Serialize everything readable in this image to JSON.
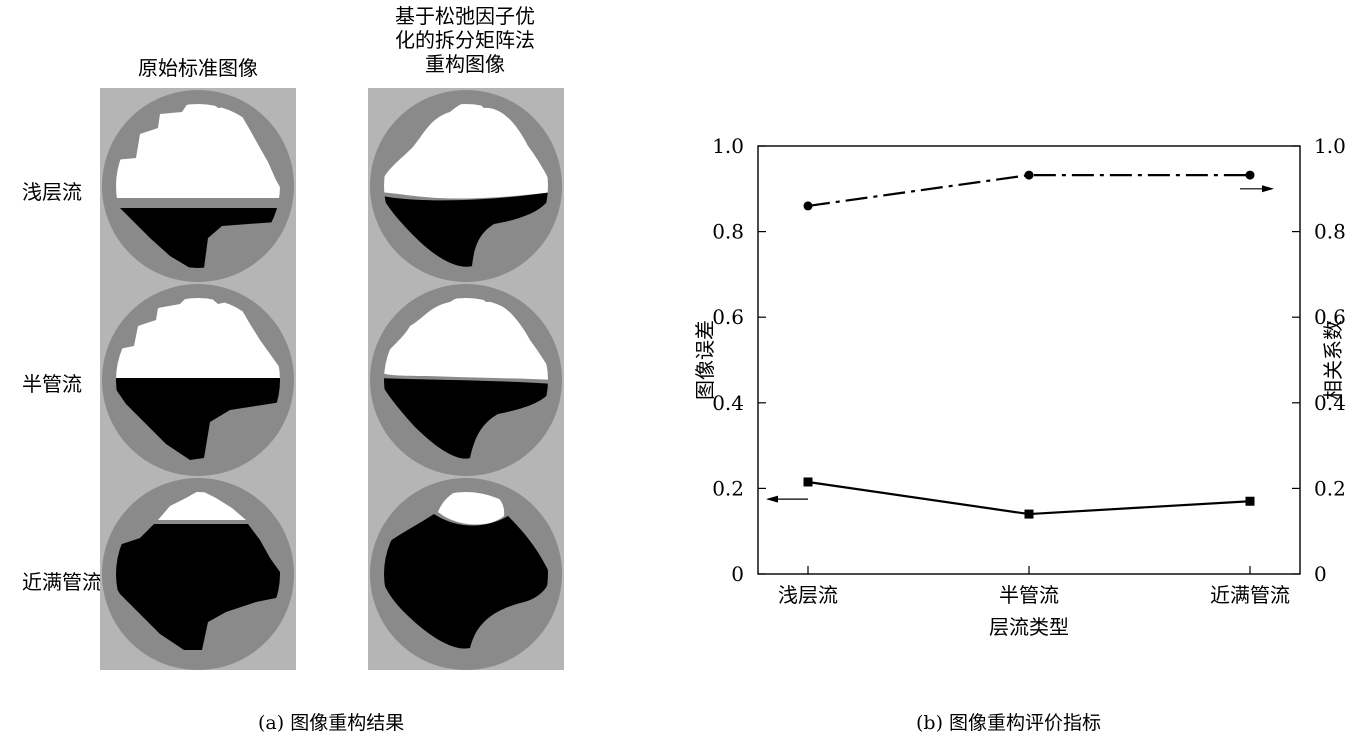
{
  "panel_a": {
    "caption": "(a) 图像重构结果",
    "col_headers": [
      "原始标准图像",
      "基于松弛因子优\n化的拆分矩阵法\n重构图像"
    ],
    "rows": [
      "浅层流",
      "半管流",
      "近满管流"
    ]
  },
  "panel_b": {
    "caption": "(b) 图像重构评价指标"
  },
  "chart_data": {
    "type": "line",
    "categories": [
      "浅层流",
      "半管流",
      "近满管流"
    ],
    "xlabel": "层流类型",
    "ylabel": "图像误差",
    "y2label": "相关系数",
    "ylim": [
      0,
      1.0
    ],
    "y2lim": [
      0,
      1.0
    ],
    "yticks": [
      "0",
      "0.2",
      "0.4",
      "0.6",
      "0.8",
      "1.0"
    ],
    "y2ticks": [
      "0",
      "0.2",
      "0.4",
      "0.6",
      "0.8",
      "1.0"
    ],
    "grid": false,
    "series": [
      {
        "axis": "left",
        "marker": "square",
        "line": "solid",
        "values": [
          0.215,
          0.14,
          0.17
        ]
      },
      {
        "axis": "right",
        "marker": "circle",
        "line": "dashdot",
        "values": [
          0.86,
          0.932,
          0.932
        ]
      }
    ]
  }
}
